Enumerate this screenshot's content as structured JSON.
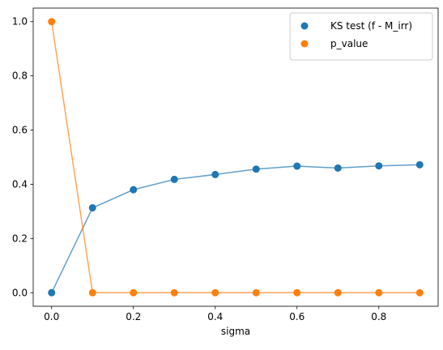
{
  "chart_data": {
    "type": "scatter",
    "title": "",
    "xlabel": "sigma",
    "ylabel": "",
    "xlim": [
      -0.045,
      0.945
    ],
    "ylim": [
      -0.05,
      1.05
    ],
    "xticks": [
      0.0,
      0.2,
      0.4,
      0.6,
      0.8
    ],
    "xtick_labels": [
      "0.0",
      "0.2",
      "0.4",
      "0.6",
      "0.8"
    ],
    "yticks": [
      0.0,
      0.2,
      0.4,
      0.6,
      0.8,
      1.0
    ],
    "ytick_labels": [
      "0.0",
      "0.2",
      "0.4",
      "0.6",
      "0.8",
      "1.0"
    ],
    "grid": false,
    "legend_position": "top-right",
    "x": [
      0.0,
      0.1,
      0.2,
      0.3,
      0.4,
      0.5,
      0.6,
      0.7,
      0.8,
      0.9
    ],
    "series": [
      {
        "name": "KS test (f - M_irr)",
        "color": "#1f77b4",
        "values": [
          0.0,
          0.313,
          0.38,
          0.418,
          0.436,
          0.456,
          0.467,
          0.46,
          0.468,
          0.472
        ]
      },
      {
        "name": "p_value",
        "color": "#ff7f0e",
        "values": [
          1.0,
          0.0,
          0.0,
          0.0,
          0.0,
          0.0,
          0.0,
          0.0,
          0.0,
          0.0
        ]
      }
    ]
  }
}
